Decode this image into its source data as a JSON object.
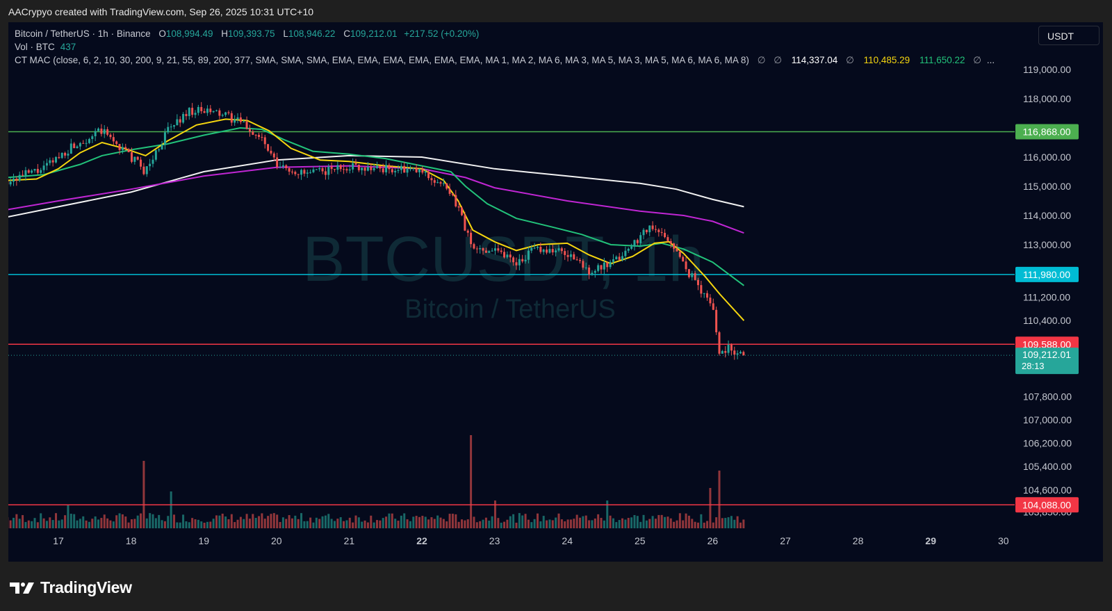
{
  "header": {
    "attribution": "AACrypyo created with TradingView.com, Sep 26, 2025 10:31 UTC+10"
  },
  "legend": {
    "symbol": "Bitcoin / TetherUS · 1h · Binance",
    "open_label": "O",
    "open": "108,994.49",
    "high_label": "H",
    "high": "109,393.75",
    "low_label": "L",
    "low": "108,946.22",
    "close_label": "C",
    "close": "109,212.01",
    "change": "+217.52 (+0.20%)",
    "vol_label": "Vol · BTC",
    "vol_value": "437",
    "indicator": "CT MAC (close, 6, 2, 10, 30, 200, 9, 21, 55, 89, 200, 377, SMA, SMA, SMA, EMA, EMA, EMA, EMA, EMA, EMA, MA 1, MA 2, MA 6, MA 3, MA 5, MA 3, MA 5, MA 6, MA 6, MA 8)",
    "na_symbol": "∅",
    "ma_values": [
      "114,337.04",
      "110,485.29",
      "111,650.22"
    ],
    "ellipsis": "..."
  },
  "currency_button": "USDT",
  "watermark": {
    "ticker": "BTCUSDT, 1h",
    "name": "Bitcoin / TetherUS"
  },
  "branding": {
    "logo": "TradingView"
  },
  "colors": {
    "background": "#050a1c",
    "up": "#26a69a",
    "down": "#ef5350",
    "ma_white": "#f2f2f2",
    "ma_magenta": "#c026d3",
    "ma_green": "#22c27a",
    "ma_yellow": "#f5d60f",
    "level_green": "#4caf50",
    "level_cyan": "#00bcd4",
    "level_red": "#f23645"
  },
  "chart_data": {
    "type": "candlestick",
    "symbol": "BTCUSDT",
    "interval": "1h",
    "exchange": "Binance",
    "x_ticks": [
      "17",
      "18",
      "19",
      "20",
      "21",
      "22",
      "23",
      "24",
      "25",
      "26",
      "27",
      "28",
      "29",
      "30"
    ],
    "x_range": [
      16.3,
      30.3
    ],
    "data_end_day": 26.43,
    "y_ticks": [
      "119,000.00",
      "118,000.00",
      "116,000.00",
      "115,000.00",
      "114,000.00",
      "113,000.00",
      "111,200.00",
      "110,400.00",
      "107,800.00",
      "107,000.00",
      "106,200.00",
      "105,400.00",
      "104,600.00",
      "103,850.00"
    ],
    "y_tick_values": [
      119000,
      118000,
      116000,
      115000,
      114000,
      113000,
      111200,
      110400,
      107800,
      107000,
      106200,
      105400,
      104600,
      103850
    ],
    "horizontal_levels": [
      {
        "label": "116,868.00",
        "value": 116868,
        "color": "#4caf50"
      },
      {
        "label": "111,980.00",
        "value": 111980,
        "color": "#00bcd4"
      },
      {
        "label": "109,588.00",
        "value": 109588,
        "color": "#f23645"
      },
      {
        "label": "104,088.00",
        "value": 104088,
        "color": "#f23645"
      }
    ],
    "last_price": {
      "label": "109,212.01",
      "value": 109212.01,
      "countdown": "28:13"
    },
    "close_path": [
      [
        16.3,
        115.2
      ],
      [
        16.8,
        115.6
      ],
      [
        17.2,
        116.4
      ],
      [
        17.6,
        116.9
      ],
      [
        18.0,
        116.0
      ],
      [
        18.2,
        115.5
      ],
      [
        18.5,
        116.9
      ],
      [
        18.8,
        117.6
      ],
      [
        19.2,
        117.5
      ],
      [
        19.5,
        117.2
      ],
      [
        19.8,
        116.6
      ],
      [
        20.0,
        115.7
      ],
      [
        20.4,
        115.4
      ],
      [
        21.0,
        115.7
      ],
      [
        21.5,
        115.6
      ],
      [
        22.0,
        115.5
      ],
      [
        22.3,
        115.0
      ],
      [
        22.5,
        114.3
      ],
      [
        22.7,
        112.8
      ],
      [
        23.0,
        112.9
      ],
      [
        23.3,
        112.4
      ],
      [
        23.6,
        112.9
      ],
      [
        24.0,
        112.7
      ],
      [
        24.3,
        112.1
      ],
      [
        24.6,
        112.3
      ],
      [
        24.9,
        113.0
      ],
      [
        25.1,
        113.6
      ],
      [
        25.4,
        113.2
      ],
      [
        25.6,
        112.3
      ],
      [
        25.8,
        111.6
      ],
      [
        26.0,
        110.9
      ],
      [
        26.1,
        109.2
      ],
      [
        26.2,
        109.5
      ],
      [
        26.43,
        109.21
      ]
    ],
    "moving_averages": [
      {
        "color": "#f2f2f2",
        "points": [
          [
            16.3,
            113.95
          ],
          [
            17,
            114.3
          ],
          [
            18,
            114.8
          ],
          [
            19,
            115.5
          ],
          [
            20,
            115.9
          ],
          [
            21,
            116.05
          ],
          [
            22,
            116.0
          ],
          [
            23,
            115.6
          ],
          [
            24,
            115.35
          ],
          [
            25,
            115.1
          ],
          [
            25.5,
            114.9
          ],
          [
            26.0,
            114.55
          ],
          [
            26.43,
            114.3
          ]
        ]
      },
      {
        "color": "#c026d3",
        "points": [
          [
            16.3,
            114.2
          ],
          [
            17,
            114.5
          ],
          [
            18,
            114.9
          ],
          [
            19,
            115.35
          ],
          [
            20,
            115.65
          ],
          [
            21,
            115.7
          ],
          [
            22,
            115.6
          ],
          [
            22.6,
            115.3
          ],
          [
            23,
            114.95
          ],
          [
            24,
            114.5
          ],
          [
            25,
            114.15
          ],
          [
            25.6,
            114.0
          ],
          [
            26.0,
            113.8
          ],
          [
            26.43,
            113.4
          ]
        ]
      },
      {
        "color": "#22c27a",
        "points": [
          [
            16.3,
            115.3
          ],
          [
            16.8,
            115.4
          ],
          [
            17.3,
            115.75
          ],
          [
            17.6,
            116.05
          ],
          [
            18.0,
            116.25
          ],
          [
            18.5,
            116.45
          ],
          [
            19,
            116.75
          ],
          [
            19.5,
            117.0
          ],
          [
            19.8,
            116.95
          ],
          [
            20.1,
            116.6
          ],
          [
            20.5,
            116.2
          ],
          [
            21,
            116.1
          ],
          [
            21.5,
            115.95
          ],
          [
            22,
            115.7
          ],
          [
            22.4,
            115.5
          ],
          [
            22.6,
            115.0
          ],
          [
            22.9,
            114.4
          ],
          [
            23.3,
            113.9
          ],
          [
            23.8,
            113.6
          ],
          [
            24.2,
            113.35
          ],
          [
            24.6,
            113.0
          ],
          [
            25.0,
            112.95
          ],
          [
            25.3,
            113.05
          ],
          [
            25.6,
            112.85
          ],
          [
            26.0,
            112.4
          ],
          [
            26.43,
            111.6
          ]
        ]
      },
      {
        "color": "#f5d60f",
        "points": [
          [
            16.3,
            115.2
          ],
          [
            16.7,
            115.25
          ],
          [
            17.0,
            115.6
          ],
          [
            17.3,
            116.15
          ],
          [
            17.6,
            116.5
          ],
          [
            17.9,
            116.3
          ],
          [
            18.2,
            116.05
          ],
          [
            18.5,
            116.55
          ],
          [
            18.9,
            117.1
          ],
          [
            19.3,
            117.3
          ],
          [
            19.6,
            117.25
          ],
          [
            19.9,
            116.9
          ],
          [
            20.2,
            116.3
          ],
          [
            20.6,
            115.9
          ],
          [
            21,
            115.85
          ],
          [
            21.5,
            115.7
          ],
          [
            22,
            115.6
          ],
          [
            22.3,
            115.2
          ],
          [
            22.5,
            114.5
          ],
          [
            22.7,
            113.5
          ],
          [
            23.0,
            113.1
          ],
          [
            23.3,
            112.8
          ],
          [
            23.6,
            113.0
          ],
          [
            24.0,
            113.05
          ],
          [
            24.3,
            112.65
          ],
          [
            24.6,
            112.35
          ],
          [
            24.9,
            112.6
          ],
          [
            25.2,
            113.05
          ],
          [
            25.4,
            113.1
          ],
          [
            25.6,
            112.7
          ],
          [
            25.9,
            111.9
          ],
          [
            26.1,
            111.3
          ],
          [
            26.43,
            110.4
          ]
        ]
      }
    ],
    "volume_spikes": [
      [
        17.12,
        34
      ],
      [
        18.16,
        97
      ],
      [
        18.53,
        53
      ],
      [
        22.66,
        134
      ],
      [
        23.0,
        40
      ],
      [
        24.55,
        40
      ],
      [
        25.95,
        58
      ],
      [
        26.11,
        83
      ]
    ]
  }
}
